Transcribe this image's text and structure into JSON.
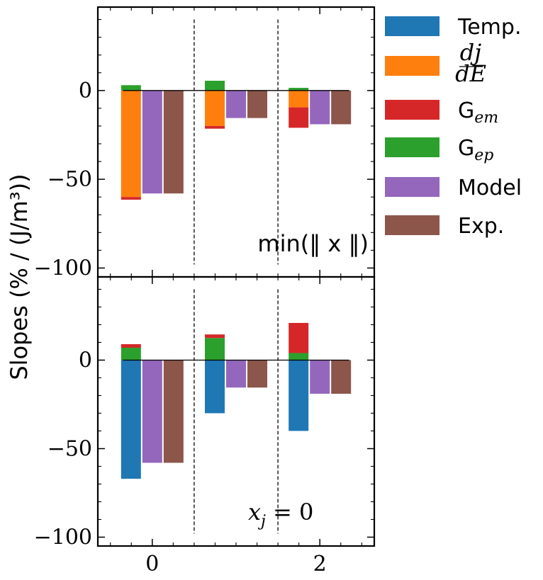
{
  "chart_data": {
    "type": "bar",
    "ylabel": "Slopes (% / (J/m³))",
    "x_ticks": [
      0,
      2
    ],
    "xlim": [
      -0.65,
      2.65
    ],
    "legend": {
      "placement": "outside-right",
      "entries": [
        {
          "key": "temp",
          "label": "Temp.",
          "color": "#1f77b4"
        },
        {
          "key": "djde",
          "label": "dj/dE",
          "num": "dj",
          "den": "dE",
          "color": "#ff7f0e"
        },
        {
          "key": "gem",
          "label": "G",
          "sub": "em",
          "color": "#d62728"
        },
        {
          "key": "gep",
          "label": "G",
          "sub": "ep",
          "color": "#2ca02c"
        },
        {
          "key": "model",
          "label": "Model",
          "color": "#9467bd"
        },
        {
          "key": "exp",
          "label": "Exp.",
          "color": "#8c564b"
        }
      ]
    },
    "panels": [
      {
        "annotation": "min(‖ x ‖)",
        "annotation_style": "sans",
        "ylim": [
          -105,
          47
        ],
        "yticks": [
          0,
          -50,
          -100
        ],
        "dividers": [
          0.5,
          1.5
        ],
        "groups": [
          {
            "x": 0,
            "stack": [
              {
                "series": "gep",
                "value": 3
              },
              {
                "series": "djde",
                "value": -60
              },
              {
                "series": "gem",
                "value": -1.5
              }
            ],
            "model": -58,
            "exp": -58
          },
          {
            "x": 1,
            "stack": [
              {
                "series": "gep",
                "value": 5.5
              },
              {
                "series": "djde",
                "value": -20
              },
              {
                "series": "gem",
                "value": -1.5
              }
            ],
            "model": -15.5,
            "exp": -15.5
          },
          {
            "x": 2,
            "stack": [
              {
                "series": "gep",
                "value": 1.5
              },
              {
                "series": "djde",
                "value": -9.5
              },
              {
                "series": "gem",
                "value": -11.5
              }
            ],
            "model": -19,
            "exp": -19
          }
        ]
      },
      {
        "annotation": "x_j = 0",
        "annotation_style": "math",
        "annotation_base": "x",
        "annotation_sub": "j",
        "annotation_rest": " = 0",
        "ylim": [
          -105,
          47
        ],
        "yticks": [
          0,
          -50,
          -100
        ],
        "dividers": [
          0.5,
          1.5
        ],
        "groups": [
          {
            "x": 0,
            "stack": [
              {
                "series": "gep",
                "value": 7
              },
              {
                "series": "gem",
                "value": 2
              },
              {
                "series": "temp",
                "value": -67
              }
            ],
            "model": -58,
            "exp": -58
          },
          {
            "x": 1,
            "stack": [
              {
                "series": "gep",
                "value": 12.5
              },
              {
                "series": "gem",
                "value": 2
              },
              {
                "series": "temp",
                "value": -30
              }
            ],
            "model": -15.5,
            "exp": -15.5
          },
          {
            "x": 2,
            "stack": [
              {
                "series": "gep",
                "value": 4
              },
              {
                "series": "gem",
                "value": 17
              },
              {
                "series": "temp",
                "value": -40
              }
            ],
            "model": -19,
            "exp": -19
          }
        ]
      }
    ]
  }
}
